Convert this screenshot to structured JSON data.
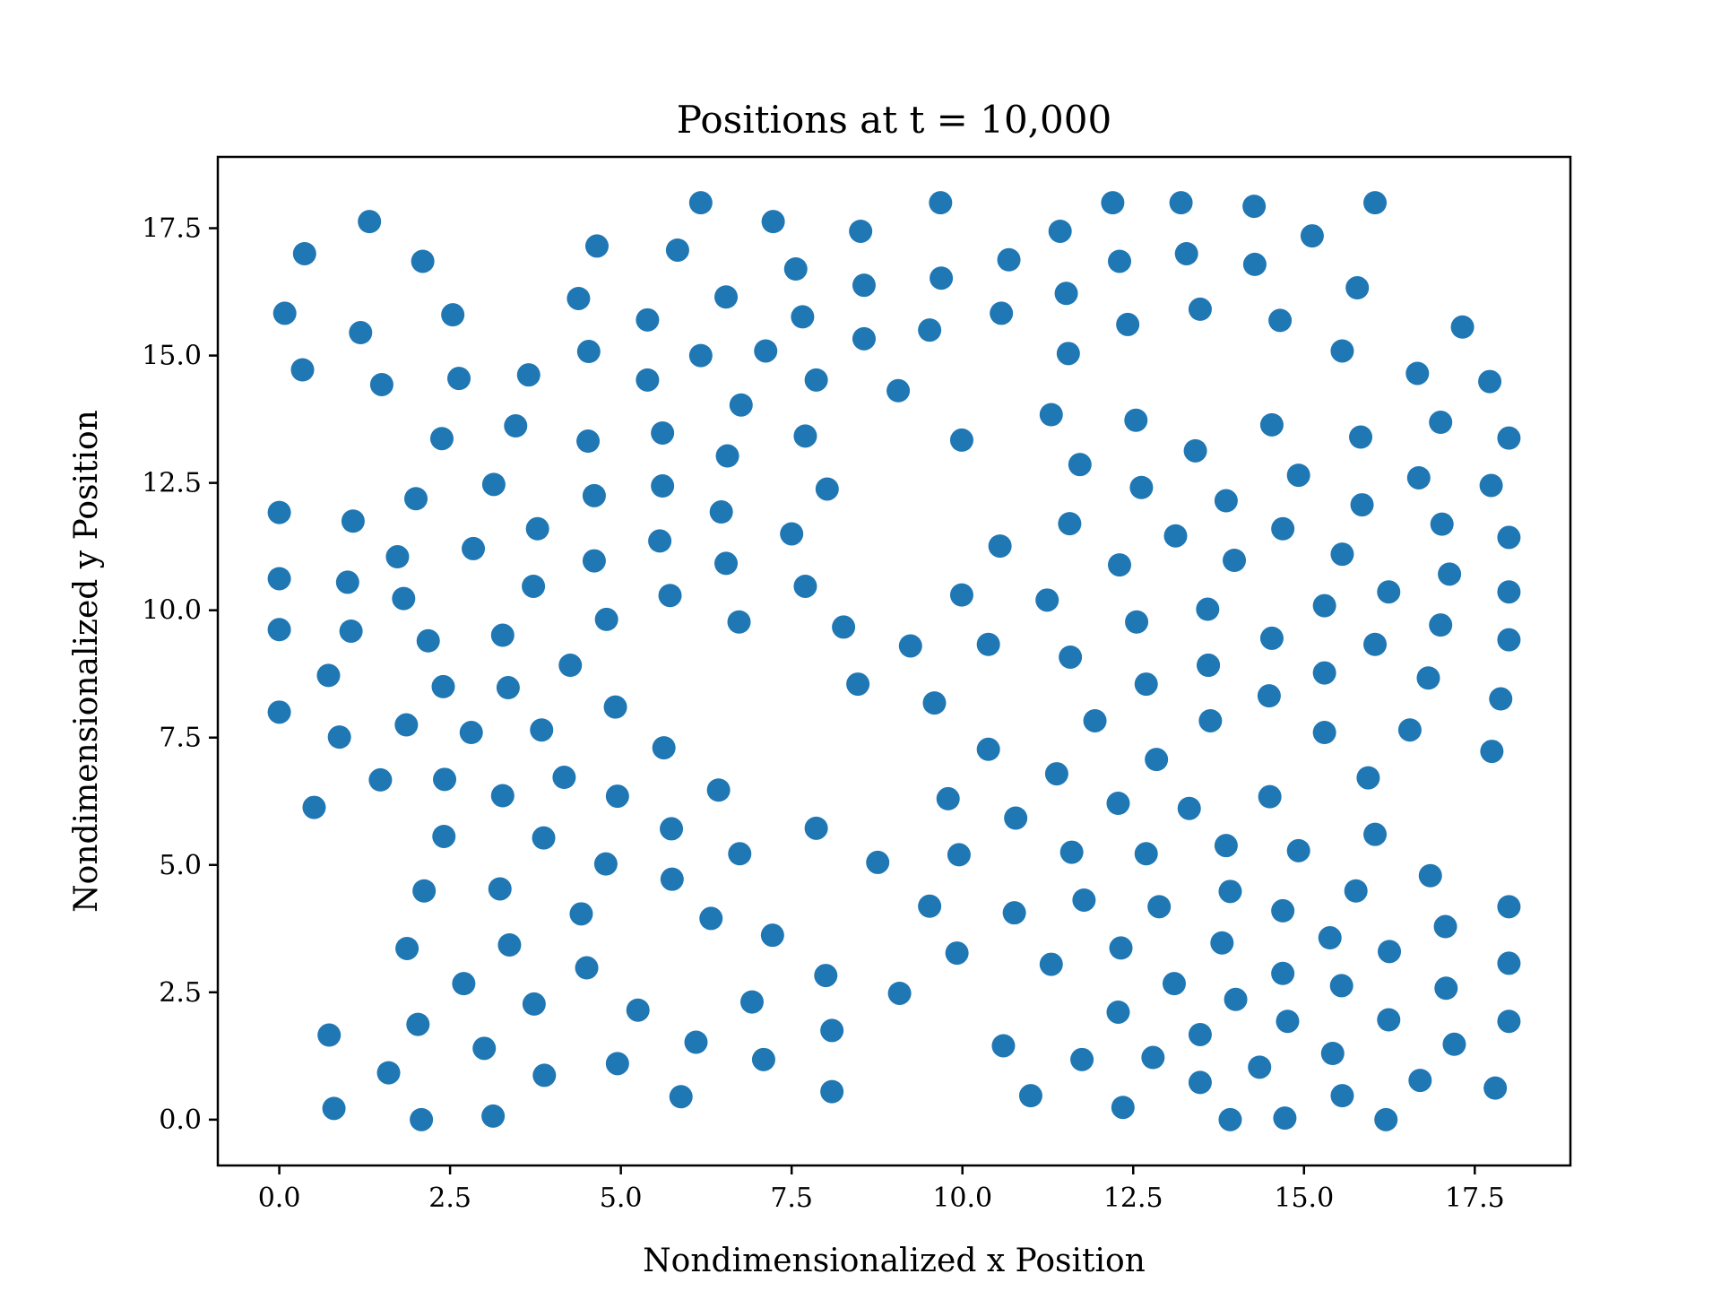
{
  "chart_data": {
    "type": "scatter",
    "title": "Positions at t = 10,000",
    "xlabel": "Nondimensionalized x Position",
    "ylabel": "Nondimensionalized y Position",
    "xlim": [
      -0.9,
      18.9
    ],
    "ylim": [
      -0.9,
      18.9
    ],
    "xticks": [
      0.0,
      2.5,
      5.0,
      7.5,
      10.0,
      12.5,
      15.0,
      17.5
    ],
    "yticks": [
      0.0,
      2.5,
      5.0,
      7.5,
      10.0,
      12.5,
      15.0,
      17.5
    ],
    "xtick_labels": [
      "0.0",
      "2.5",
      "5.0",
      "7.5",
      "10.0",
      "12.5",
      "15.0",
      "17.5"
    ],
    "ytick_labels": [
      "0.0",
      "2.5",
      "5.0",
      "7.5",
      "10.0",
      "12.5",
      "15.0",
      "17.5"
    ],
    "grid": false,
    "marker_color": "#1f77b4",
    "points": [
      [
        1.32,
        17.63
      ],
      [
        0.37,
        17.0
      ],
      [
        2.1,
        16.85
      ],
      [
        0.08,
        15.83
      ],
      [
        2.54,
        15.8
      ],
      [
        1.19,
        15.45
      ],
      [
        0.34,
        14.72
      ],
      [
        1.5,
        14.43
      ],
      [
        2.63,
        14.55
      ],
      [
        3.65,
        14.62
      ],
      [
        3.46,
        13.62
      ],
      [
        2.38,
        13.37
      ],
      [
        3.14,
        12.47
      ],
      [
        2.0,
        12.19
      ],
      [
        0.0,
        11.92
      ],
      [
        1.08,
        11.75
      ],
      [
        1.73,
        11.05
      ],
      [
        2.84,
        11.21
      ],
      [
        3.78,
        11.6
      ],
      [
        0.0,
        10.62
      ],
      [
        1.0,
        10.55
      ],
      [
        1.82,
        10.23
      ],
      [
        3.72,
        10.47
      ],
      [
        0.0,
        9.62
      ],
      [
        1.05,
        9.59
      ],
      [
        2.18,
        9.4
      ],
      [
        3.27,
        9.51
      ],
      [
        0.72,
        8.72
      ],
      [
        2.4,
        8.5
      ],
      [
        3.35,
        8.48
      ],
      [
        0.0,
        8.0
      ],
      [
        0.88,
        7.51
      ],
      [
        1.86,
        7.75
      ],
      [
        2.81,
        7.6
      ],
      [
        3.84,
        7.65
      ],
      [
        1.48,
        6.67
      ],
      [
        2.42,
        6.68
      ],
      [
        3.27,
        6.36
      ],
      [
        0.51,
        6.13
      ],
      [
        2.41,
        5.56
      ],
      [
        3.87,
        5.53
      ],
      [
        2.12,
        4.49
      ],
      [
        3.23,
        4.53
      ],
      [
        1.87,
        3.36
      ],
      [
        3.37,
        3.43
      ],
      [
        2.7,
        2.67
      ],
      [
        3.73,
        2.27
      ],
      [
        2.03,
        1.87
      ],
      [
        0.73,
        1.66
      ],
      [
        3.0,
        1.4
      ],
      [
        1.6,
        0.92
      ],
      [
        3.88,
        0.87
      ],
      [
        0.8,
        0.22
      ],
      [
        2.08,
        0.0
      ],
      [
        3.13,
        0.07
      ],
      [
        4.65,
        17.15
      ],
      [
        6.17,
        18.0
      ],
      [
        5.83,
        17.07
      ],
      [
        7.23,
        17.63
      ],
      [
        4.38,
        16.12
      ],
      [
        6.54,
        16.15
      ],
      [
        7.56,
        16.7
      ],
      [
        5.39,
        15.7
      ],
      [
        4.53,
        15.08
      ],
      [
        6.17,
        15.0
      ],
      [
        7.12,
        15.09
      ],
      [
        7.66,
        15.76
      ],
      [
        5.39,
        14.52
      ],
      [
        6.76,
        14.03
      ],
      [
        4.52,
        13.32
      ],
      [
        5.61,
        13.48
      ],
      [
        6.56,
        13.03
      ],
      [
        4.61,
        12.25
      ],
      [
        5.61,
        12.44
      ],
      [
        6.47,
        11.93
      ],
      [
        5.57,
        11.36
      ],
      [
        4.61,
        10.97
      ],
      [
        6.54,
        10.92
      ],
      [
        5.72,
        10.29
      ],
      [
        4.79,
        9.82
      ],
      [
        6.73,
        9.77
      ],
      [
        4.26,
        8.92
      ],
      [
        4.92,
        8.1
      ],
      [
        5.63,
        7.3
      ],
      [
        4.17,
        6.72
      ],
      [
        4.95,
        6.35
      ],
      [
        6.43,
        6.47
      ],
      [
        5.74,
        5.71
      ],
      [
        6.74,
        5.22
      ],
      [
        4.78,
        5.02
      ],
      [
        5.75,
        4.72
      ],
      [
        4.42,
        4.04
      ],
      [
        6.32,
        3.95
      ],
      [
        4.5,
        2.98
      ],
      [
        5.25,
        2.15
      ],
      [
        6.1,
        1.52
      ],
      [
        4.95,
        1.1
      ],
      [
        5.88,
        0.45
      ],
      [
        8.51,
        17.44
      ],
      [
        9.68,
        18.0
      ],
      [
        8.56,
        16.38
      ],
      [
        9.69,
        16.52
      ],
      [
        8.56,
        15.33
      ],
      [
        7.86,
        14.52
      ],
      [
        9.52,
        15.5
      ],
      [
        9.06,
        14.31
      ],
      [
        7.7,
        13.42
      ],
      [
        8.02,
        12.38
      ],
      [
        9.99,
        13.34
      ],
      [
        7.5,
        11.5
      ],
      [
        7.7,
        10.47
      ],
      [
        8.26,
        9.67
      ],
      [
        9.24,
        9.3
      ],
      [
        8.47,
        8.55
      ],
      [
        9.59,
        8.18
      ],
      [
        9.79,
        6.3
      ],
      [
        7.86,
        5.72
      ],
      [
        8.76,
        5.05
      ],
      [
        9.95,
        5.2
      ],
      [
        9.52,
        4.19
      ],
      [
        7.22,
        3.62
      ],
      [
        9.92,
        3.27
      ],
      [
        8.0,
        2.83
      ],
      [
        9.08,
        2.48
      ],
      [
        6.92,
        2.31
      ],
      [
        8.09,
        1.75
      ],
      [
        7.09,
        1.18
      ],
      [
        8.09,
        0.55
      ],
      [
        10.68,
        16.88
      ],
      [
        11.43,
        17.44
      ],
      [
        10.57,
        15.83
      ],
      [
        11.52,
        16.22
      ],
      [
        11.55,
        15.04
      ],
      [
        12.2,
        18.0
      ],
      [
        12.3,
        16.85
      ],
      [
        13.2,
        18.0
      ],
      [
        13.28,
        17.0
      ],
      [
        14.27,
        17.93
      ],
      [
        14.28,
        16.79
      ],
      [
        12.42,
        15.61
      ],
      [
        13.48,
        15.91
      ],
      [
        11.3,
        13.84
      ],
      [
        11.72,
        12.86
      ],
      [
        12.54,
        13.73
      ],
      [
        13.41,
        13.13
      ],
      [
        12.62,
        12.41
      ],
      [
        11.57,
        11.7
      ],
      [
        10.55,
        11.26
      ],
      [
        9.99,
        10.3
      ],
      [
        11.24,
        10.2
      ],
      [
        12.3,
        10.89
      ],
      [
        13.12,
        11.46
      ],
      [
        10.38,
        9.33
      ],
      [
        11.58,
        9.08
      ],
      [
        12.55,
        9.77
      ],
      [
        13.59,
        10.02
      ],
      [
        11.94,
        7.83
      ],
      [
        12.69,
        8.55
      ],
      [
        13.6,
        8.92
      ],
      [
        10.38,
        7.27
      ],
      [
        11.38,
        6.79
      ],
      [
        12.28,
        6.21
      ],
      [
        12.84,
        7.07
      ],
      [
        13.32,
        6.11
      ],
      [
        10.78,
        5.92
      ],
      [
        11.6,
        5.25
      ],
      [
        12.69,
        5.22
      ],
      [
        13.86,
        5.38
      ],
      [
        10.76,
        4.06
      ],
      [
        11.78,
        4.31
      ],
      [
        12.88,
        4.18
      ],
      [
        12.32,
        3.37
      ],
      [
        11.3,
        3.05
      ],
      [
        13.1,
        2.67
      ],
      [
        12.28,
        2.11
      ],
      [
        10.6,
        1.45
      ],
      [
        11.75,
        1.18
      ],
      [
        12.79,
        1.22
      ],
      [
        13.48,
        1.67
      ],
      [
        11.0,
        0.47
      ],
      [
        12.35,
        0.24
      ],
      [
        13.48,
        0.73
      ],
      [
        15.12,
        17.35
      ],
      [
        16.04,
        18.0
      ],
      [
        15.78,
        16.33
      ],
      [
        14.65,
        15.69
      ],
      [
        15.56,
        15.09
      ],
      [
        14.53,
        13.64
      ],
      [
        15.83,
        13.4
      ],
      [
        14.92,
        12.65
      ],
      [
        13.86,
        12.15
      ],
      [
        15.85,
        12.07
      ],
      [
        14.69,
        11.6
      ],
      [
        15.56,
        11.1
      ],
      [
        13.98,
        10.98
      ],
      [
        15.3,
        10.09
      ],
      [
        14.53,
        9.45
      ],
      [
        16.04,
        9.33
      ],
      [
        13.6,
        8.92
      ],
      [
        14.49,
        8.32
      ],
      [
        15.3,
        8.77
      ],
      [
        13.63,
        7.83
      ],
      [
        15.3,
        7.6
      ],
      [
        15.94,
        6.71
      ],
      [
        14.5,
        6.34
      ],
      [
        14.92,
        5.28
      ],
      [
        16.04,
        5.6
      ],
      [
        15.76,
        4.49
      ],
      [
        14.69,
        4.1
      ],
      [
        13.92,
        4.48
      ],
      [
        15.38,
        3.57
      ],
      [
        13.8,
        3.47
      ],
      [
        14.69,
        2.87
      ],
      [
        15.55,
        2.63
      ],
      [
        14.0,
        2.36
      ],
      [
        14.76,
        1.93
      ],
      [
        15.42,
        1.3
      ],
      [
        16.24,
        1.96
      ],
      [
        14.35,
        1.03
      ],
      [
        15.56,
        0.47
      ],
      [
        13.92,
        0.0
      ],
      [
        14.72,
        0.03
      ],
      [
        16.2,
        0.0
      ],
      [
        17.32,
        15.56
      ],
      [
        16.66,
        14.65
      ],
      [
        17.72,
        14.49
      ],
      [
        17.0,
        13.69
      ],
      [
        18.0,
        13.38
      ],
      [
        16.68,
        12.6
      ],
      [
        17.74,
        12.45
      ],
      [
        17.02,
        11.69
      ],
      [
        18.0,
        11.43
      ],
      [
        17.13,
        10.71
      ],
      [
        16.24,
        10.36
      ],
      [
        18.0,
        10.36
      ],
      [
        17.0,
        9.71
      ],
      [
        18.0,
        9.42
      ],
      [
        16.82,
        8.67
      ],
      [
        17.88,
        8.26
      ],
      [
        16.55,
        7.65
      ],
      [
        17.75,
        7.23
      ],
      [
        16.85,
        4.79
      ],
      [
        17.07,
        3.79
      ],
      [
        18.0,
        4.18
      ],
      [
        16.25,
        3.3
      ],
      [
        18.0,
        3.07
      ],
      [
        17.08,
        2.58
      ],
      [
        18.0,
        1.93
      ],
      [
        17.2,
        1.48
      ],
      [
        16.7,
        0.77
      ],
      [
        17.8,
        0.62
      ]
    ]
  }
}
